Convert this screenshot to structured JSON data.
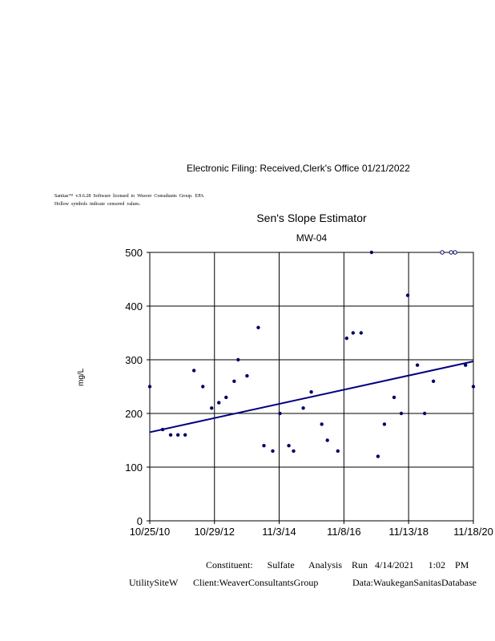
{
  "header": {
    "filing_stamp": "Electronic    Filing:    Received,Clerk's    Office    01/21/2022",
    "license_line": "Sanitas™  v.9.6.28  Software  licensed  to  Weaver  Consultants  Group.  EPA",
    "censored_note": "Hollow  symbols  indicate  censored  values."
  },
  "footer": {
    "analysis_line": "Constituent:      Sulfate      Analysis    Run   4/14/2021      1:02    PM",
    "site": "UtilitySiteW",
    "client": "Client:WeaverConsultantsGroup",
    "database": "Data:WaukeganSanitasDatabase"
  },
  "chart_data": {
    "type": "scatter",
    "title": "Sen's Slope Estimator",
    "subtitle": "MW-04",
    "xlabel": "",
    "ylabel": "mg/L",
    "xlim": [
      "2010-10-25",
      "2020-11-18"
    ],
    "ylim": [
      0,
      500
    ],
    "grid": true,
    "colors": {
      "points": "#000066",
      "trend": "#000080",
      "grid": "#000000"
    },
    "x_ticks": [
      {
        "date": "2010-10-25",
        "label": "10/25/10"
      },
      {
        "date": "2012-10-29",
        "label": "10/29/12"
      },
      {
        "date": "2014-11-03",
        "label": "11/3/14"
      },
      {
        "date": "2016-11-08",
        "label": "11/8/16"
      },
      {
        "date": "2018-11-13",
        "label": "11/13/18"
      },
      {
        "date": "2020-11-18",
        "label": "11/18/20"
      }
    ],
    "y_ticks": [
      0,
      100,
      200,
      300,
      400,
      500
    ],
    "points": [
      {
        "date": "2010-10-25",
        "value": 250
      },
      {
        "date": "2011-03-20",
        "value": 170
      },
      {
        "date": "2011-06-19",
        "value": 160
      },
      {
        "date": "2011-09-10",
        "value": 160
      },
      {
        "date": "2011-12-01",
        "value": 160
      },
      {
        "date": "2012-03-10",
        "value": 280
      },
      {
        "date": "2012-06-19",
        "value": 250
      },
      {
        "date": "2012-09-27",
        "value": 210
      },
      {
        "date": "2012-12-18",
        "value": 220
      },
      {
        "date": "2013-03-10",
        "value": 230
      },
      {
        "date": "2013-06-10",
        "value": 260
      },
      {
        "date": "2013-07-25",
        "value": 300
      },
      {
        "date": "2013-11-03",
        "value": 270
      },
      {
        "date": "2014-03-11",
        "value": 360
      },
      {
        "date": "2014-05-14",
        "value": 140
      },
      {
        "date": "2014-08-22",
        "value": 130
      },
      {
        "date": "2014-11-12",
        "value": 200
      },
      {
        "date": "2015-02-21",
        "value": 140
      },
      {
        "date": "2015-04-16",
        "value": 130
      },
      {
        "date": "2015-08-04",
        "value": 210
      },
      {
        "date": "2015-11-03",
        "value": 240
      },
      {
        "date": "2016-03-01",
        "value": 180
      },
      {
        "date": "2016-05-04",
        "value": 150
      },
      {
        "date": "2016-08-31",
        "value": 130
      },
      {
        "date": "2016-12-09",
        "value": 340
      },
      {
        "date": "2017-02-20",
        "value": 350
      },
      {
        "date": "2017-05-22",
        "value": 350
      },
      {
        "date": "2017-09-18",
        "value": 500
      },
      {
        "date": "2017-11-30",
        "value": 120
      },
      {
        "date": "2018-02-11",
        "value": 180
      },
      {
        "date": "2018-06-01",
        "value": 230
      },
      {
        "date": "2018-08-22",
        "value": 200
      },
      {
        "date": "2018-11-03",
        "value": 420
      },
      {
        "date": "2019-02-21",
        "value": 290
      },
      {
        "date": "2019-05-14",
        "value": 200
      },
      {
        "date": "2019-08-22",
        "value": 260
      },
      {
        "date": "2019-11-30",
        "value": 500,
        "censored": true
      },
      {
        "date": "2020-03-10",
        "value": 500,
        "censored": true
      },
      {
        "date": "2020-04-24",
        "value": 500,
        "censored": true
      },
      {
        "date": "2020-08-21",
        "value": 290
      },
      {
        "date": "2020-11-18",
        "value": 250
      }
    ],
    "trend_line": [
      {
        "date": "2010-10-25",
        "value": 165
      },
      {
        "date": "2020-11-18",
        "value": 297
      }
    ]
  }
}
